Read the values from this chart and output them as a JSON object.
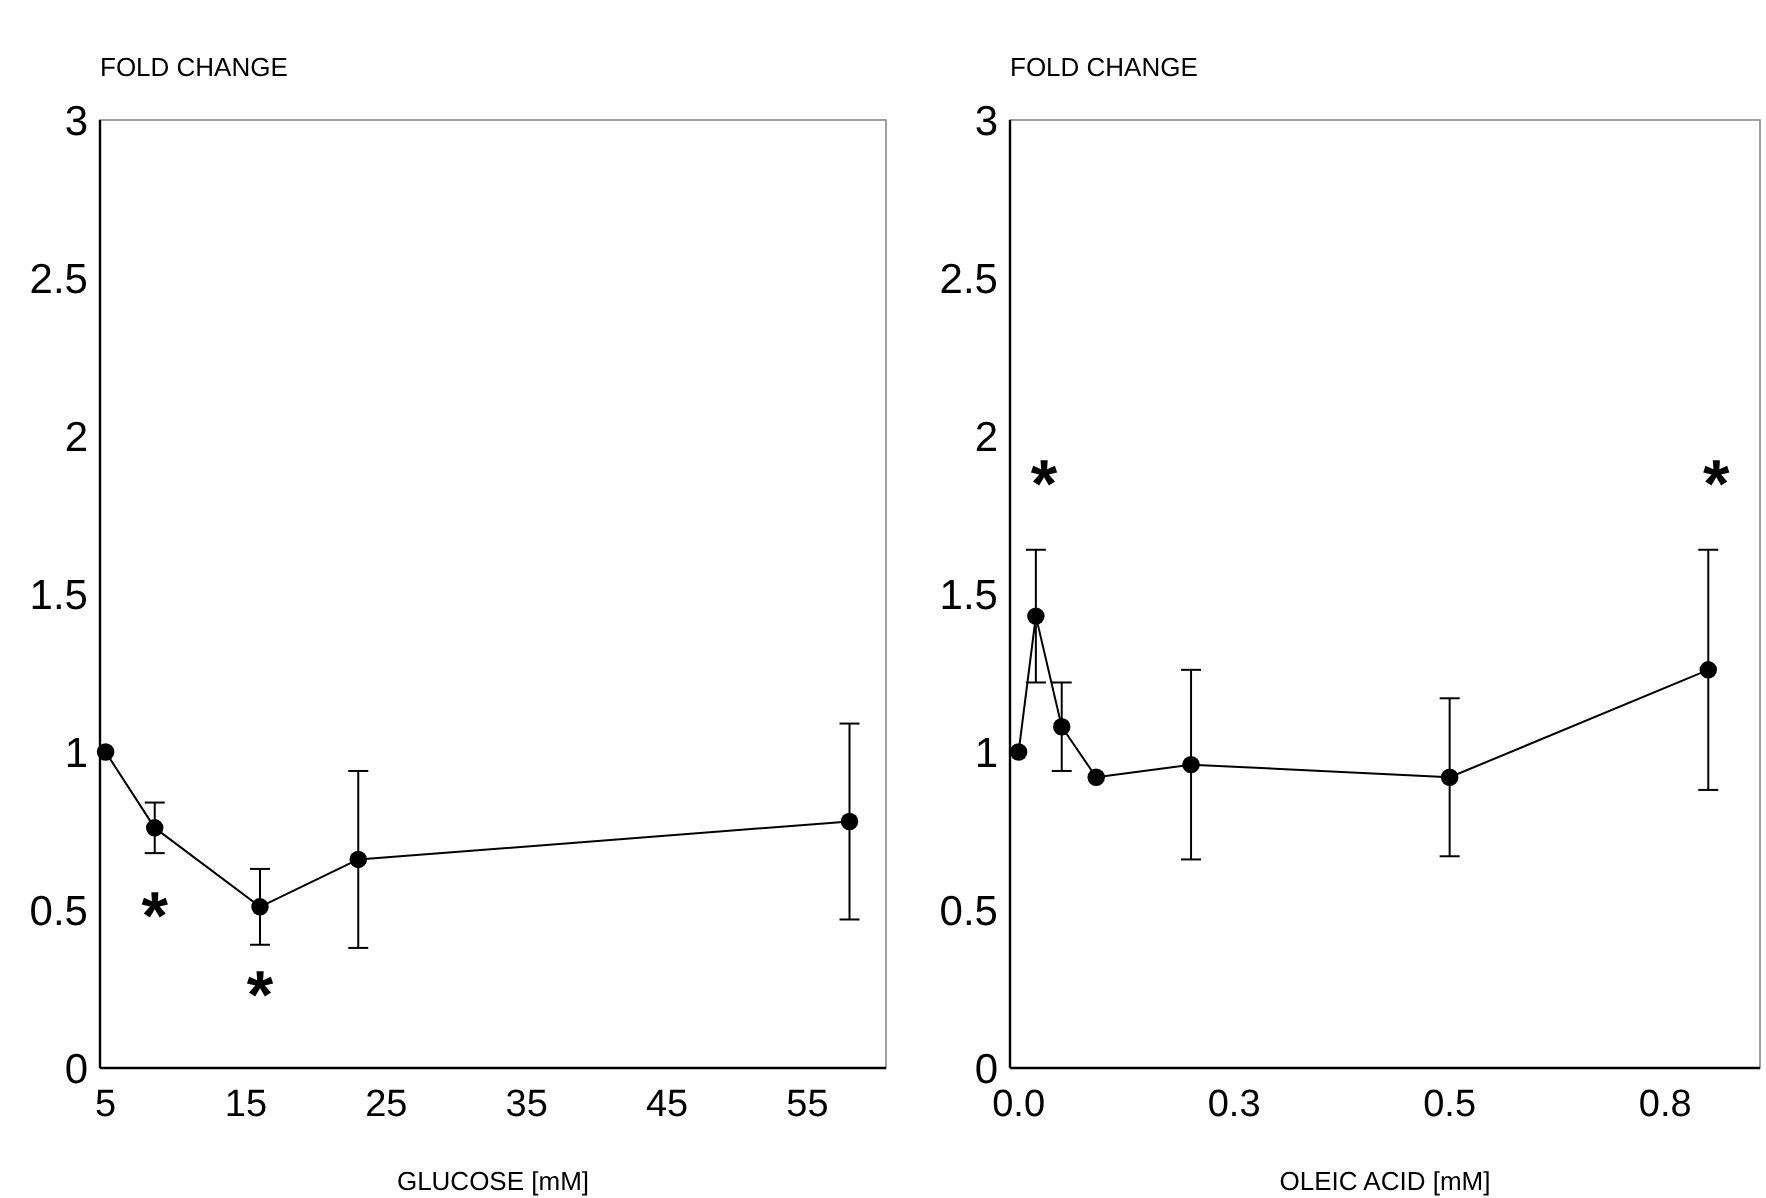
{
  "chart_data": [
    {
      "type": "line",
      "ylabel": "FOLD CHANGE",
      "xlabel": "GLUCOSE [mM]",
      "xlim": [
        4.6,
        60.6
      ],
      "ylim": [
        0,
        3
      ],
      "xticks": [
        5,
        15,
        25,
        35,
        45,
        55
      ],
      "yticks": [
        0,
        0.5,
        1,
        1.5,
        2,
        2.5,
        3
      ],
      "x": [
        5,
        8.5,
        16,
        23,
        58
      ],
      "marker": "circle",
      "series": [
        {
          "color": "#000000",
          "values": [
            1.0,
            0.76,
            0.51,
            0.66,
            0.78
          ],
          "errors": [
            null,
            0.08,
            0.12,
            0.28,
            0.31
          ]
        }
      ],
      "annotations": [
        {
          "text": "*",
          "x": 8.5,
          "y": 0.76
        },
        {
          "text": "*",
          "x": 16,
          "y": 0.51
        }
      ]
    },
    {
      "type": "line",
      "ylabel": "FOLD CHANGE",
      "xlabel": "OLEIC ACID [mM]",
      "xlim": [
        -0.01,
        0.86
      ],
      "ylim": [
        0,
        3
      ],
      "xticks": [
        {
          "value": 0,
          "label": "0.0"
        },
        {
          "value": 0.25,
          "label": "0.3"
        },
        {
          "value": 0.5,
          "label": "0.5"
        },
        {
          "value": 0.75,
          "label": "0.8"
        }
      ],
      "yticks": [
        0,
        0.5,
        1,
        1.5,
        2,
        2.5,
        3
      ],
      "x": [
        0,
        0.02,
        0.05,
        0.09,
        0.2,
        0.5,
        0.8
      ],
      "marker": "circle",
      "series": [
        {
          "color": "#000000",
          "values": [
            1.0,
            1.43,
            1.08,
            0.92,
            0.96,
            0.92,
            1.26
          ],
          "errors": [
            null,
            0.21,
            0.14,
            null,
            0.3,
            0.25,
            0.38
          ]
        }
      ],
      "annotations": [
        {
          "text": "*",
          "x": 0.02,
          "y": 1.43
        },
        {
          "text": "*",
          "x": 0.8,
          "y": 1.26
        }
      ]
    }
  ]
}
